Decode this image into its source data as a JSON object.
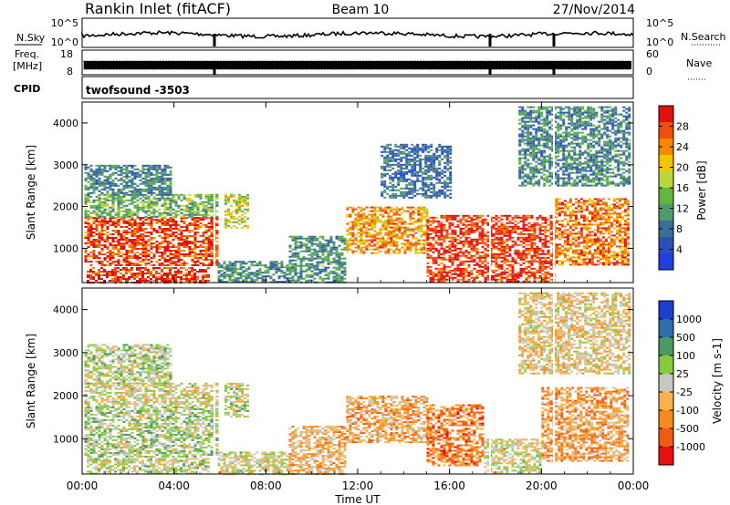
{
  "header": {
    "station": "Rankin Inlet (fitACF)",
    "beam": "Beam 10",
    "date": "27/Nov/2014"
  },
  "top_panels": {
    "nsky_label": "N.Sky",
    "nsky_ticks": [
      "10^5",
      "10^0"
    ],
    "nsearch_label": "N.Search",
    "nsearch_ticks": [
      "10^5",
      "10^0"
    ],
    "freq_label_1": "Freq.",
    "freq_label_2": "[MHz]",
    "freq_ticks": [
      "18",
      "8"
    ],
    "nave_label": "Nave",
    "nave_ticks": [
      "60",
      "0"
    ],
    "cpid_label": "CPID",
    "cpid_value": "twofsound -3503"
  },
  "colors": {
    "power": [
      "#1f3fe0",
      "#2f4fb8",
      "#3b6d9a",
      "#4f9a6c",
      "#62b540",
      "#b9d63a",
      "#f2c500",
      "#f58a00",
      "#ef4e0c",
      "#e01010"
    ],
    "velocity": [
      "#e81010",
      "#f05a12",
      "#f58a1e",
      "#f6b24d",
      "#c8c8c0",
      "#86cc3e",
      "#4a9a62",
      "#2f6eaa",
      "#1d3fd0"
    ]
  },
  "chart_data": [
    {
      "type": "heatmap",
      "name": "power",
      "xlabel": "",
      "ylabel": "Slant Range [km]",
      "xlim": [
        0,
        24
      ],
      "ylim": [
        180,
        4500
      ],
      "yticks": [
        "1000",
        "2000",
        "3000",
        "4000"
      ],
      "colorbar_label": "Power [dB]",
      "colorbar_ticks": [
        "4",
        "8",
        "12",
        "16",
        "20",
        "24",
        "28"
      ],
      "scale_range": [
        0,
        30
      ],
      "regions": [
        {
          "t": [
            0.1,
            5.9
          ],
          "r": [
            600,
            1750
          ],
          "v": 26
        },
        {
          "t": [
            0.1,
            5.9
          ],
          "r": [
            1750,
            2300
          ],
          "v": 13
        },
        {
          "t": [
            0.1,
            3.8
          ],
          "r": [
            2300,
            3000
          ],
          "v": 9
        },
        {
          "t": [
            0.2,
            5.5
          ],
          "r": [
            180,
            550
          ],
          "v": 27
        },
        {
          "t": [
            5.9,
            9.0
          ],
          "r": [
            180,
            700
          ],
          "v": 9
        },
        {
          "t": [
            9.0,
            11.5
          ],
          "r": [
            180,
            1300
          ],
          "v": 10
        },
        {
          "t": [
            6.2,
            7.2
          ],
          "r": [
            1500,
            2300
          ],
          "v": 17
        },
        {
          "t": [
            11.5,
            15.0
          ],
          "r": [
            900,
            2000
          ],
          "v": 22
        },
        {
          "t": [
            15.0,
            20.5
          ],
          "r": [
            200,
            1800
          ],
          "v": 27
        },
        {
          "t": [
            20.5,
            23.8
          ],
          "r": [
            600,
            2200
          ],
          "v": 24
        },
        {
          "t": [
            13.0,
            16.0
          ],
          "r": [
            2200,
            3500
          ],
          "v": 7
        },
        {
          "t": [
            19.0,
            23.8
          ],
          "r": [
            2500,
            4400
          ],
          "v": 9
        }
      ]
    },
    {
      "type": "heatmap",
      "name": "velocity",
      "xlabel": "Time UT",
      "ylabel": "Slant Range [km]",
      "xlim": [
        0,
        24
      ],
      "ylim": [
        180,
        4500
      ],
      "xticks": [
        "00:00",
        "04:00",
        "08:00",
        "12:00",
        "16:00",
        "20:00",
        "00:00"
      ],
      "yticks": [
        "1000",
        "2000",
        "3000",
        "4000"
      ],
      "colorbar_label": "Velocity [m s-1]",
      "colorbar_ticks": [
        "1000",
        "500",
        "100",
        "25",
        "-25",
        "-100",
        "-500",
        "-1000"
      ],
      "scale_range": [
        -1200,
        1200
      ],
      "regions": [
        {
          "t": [
            0.1,
            5.9
          ],
          "r": [
            600,
            1750
          ],
          "v": 150
        },
        {
          "t": [
            0.1,
            5.9
          ],
          "r": [
            1750,
            2300
          ],
          "v": 0
        },
        {
          "t": [
            0.1,
            3.8
          ],
          "r": [
            2300,
            3200
          ],
          "v": 120
        },
        {
          "t": [
            0.2,
            5.5
          ],
          "r": [
            180,
            550
          ],
          "v": 60
        },
        {
          "t": [
            5.9,
            9.0
          ],
          "r": [
            180,
            700
          ],
          "v": 0
        },
        {
          "t": [
            9.0,
            11.5
          ],
          "r": [
            180,
            1300
          ],
          "v": -300
        },
        {
          "t": [
            6.2,
            7.2
          ],
          "r": [
            1500,
            2300
          ],
          "v": 80
        },
        {
          "t": [
            11.5,
            15.0
          ],
          "r": [
            900,
            2000
          ],
          "v": -350
        },
        {
          "t": [
            15.0,
            17.5
          ],
          "r": [
            400,
            1800
          ],
          "v": -600
        },
        {
          "t": [
            17.5,
            20.0
          ],
          "r": [
            200,
            1000
          ],
          "v": 0
        },
        {
          "t": [
            20.0,
            23.8
          ],
          "r": [
            500,
            2200
          ],
          "v": -450
        },
        {
          "t": [
            19.0,
            23.8
          ],
          "r": [
            2500,
            4400
          ],
          "v": -150
        }
      ]
    }
  ]
}
